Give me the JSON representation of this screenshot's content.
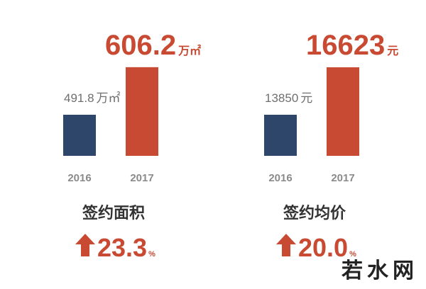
{
  "chart_data": [
    {
      "type": "bar",
      "title": "签约面积",
      "categories": [
        "2016",
        "2017"
      ],
      "values": [
        491.8,
        606.2
      ],
      "unit": "万㎡",
      "colors": [
        "#2d4669",
        "#c94a33"
      ],
      "ylim": [
        393,
        640
      ],
      "growth": 23.3,
      "growth_unit": "%"
    },
    {
      "type": "bar",
      "title": "签约均价",
      "categories": [
        "2016",
        "2017"
      ],
      "values": [
        13850,
        16623
      ],
      "unit": "元",
      "colors": [
        "#2d4669",
        "#c94a33"
      ],
      "ylim": [
        11450,
        17450
      ],
      "growth": 20.0,
      "growth_unit": "%"
    }
  ],
  "watermark": "若水网"
}
